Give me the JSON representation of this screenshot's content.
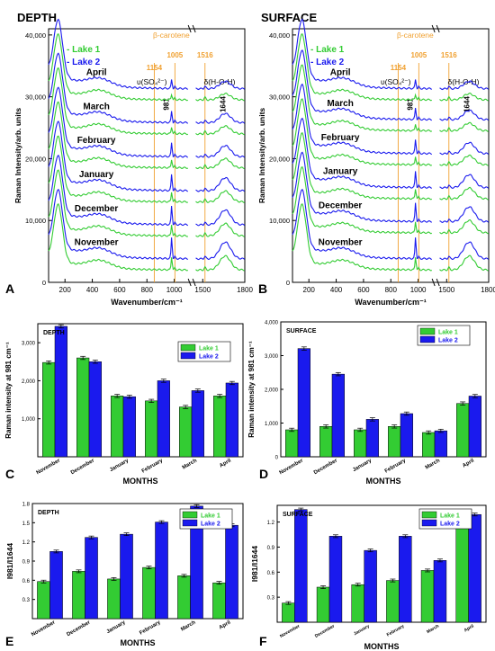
{
  "colors": {
    "lake1": "#33cc33",
    "lake2": "#1a1aee",
    "carotene": "#f0a030",
    "frame": "#000000"
  },
  "chart_data": [
    {
      "type": "line",
      "panel": "A",
      "title": "DEPTH",
      "xlabel": "Wavenumber/cm⁻¹",
      "ylabel": "Raman Intensity/arb. units",
      "xticks_left": [
        "200",
        "400",
        "600",
        "800",
        "1000"
      ],
      "xticks_right": [
        "1500",
        "1800"
      ],
      "yticks": [
        "0",
        "10,000",
        "20,000",
        "30,000",
        "40,000"
      ],
      "ylim": [
        0,
        41000
      ],
      "legend": [
        "- Lake 1",
        "- Lake 2"
      ],
      "months": [
        "April",
        "March",
        "February",
        "January",
        "December",
        "November"
      ],
      "month_offsets": [
        29500,
        24000,
        18500,
        13000,
        7500,
        2000
      ],
      "peak_labels": {
        "sulfate": "υ(SO₄²⁻)",
        "p981": "981",
        "water": "δ(H-O-H)",
        "p1644": "1644"
      },
      "carotene_labels": {
        "name": "β-carotene",
        "p1005": "1005",
        "p1154": "1154",
        "p1516": "1516"
      }
    },
    {
      "type": "line",
      "panel": "B",
      "title": "SURFACE",
      "xlabel": "Wavenumber/cm⁻¹",
      "ylabel": "Raman Intensity/arb. units",
      "xticks_left": [
        "200",
        "400",
        "600",
        "800",
        "1000"
      ],
      "xticks_right": [
        "1500",
        "1800"
      ],
      "yticks": [
        "0",
        "10,000",
        "20,000",
        "30,000",
        "40,000"
      ],
      "ylim": [
        0,
        41000
      ],
      "legend": [
        "- Lake 1",
        "- Lake 2"
      ],
      "months": [
        "April",
        "March",
        "February",
        "January",
        "December",
        "November"
      ],
      "month_offsets": [
        29500,
        24500,
        19000,
        13500,
        8000,
        2000
      ],
      "peak_labels": {
        "sulfate": "υ(SO₄²⁻)",
        "p981": "981",
        "water": "δ(H-O-H)",
        "p1644": "1644"
      },
      "carotene_labels": {
        "name": "β-carotene",
        "p1005": "1005",
        "p1154": "1154",
        "p1516": "1516"
      }
    },
    {
      "type": "bar",
      "panel": "C",
      "title": "DEPTH",
      "xlabel": "MONTHS",
      "ylabel": "Raman intensity at 981 cm⁻¹",
      "categories": [
        "November",
        "December",
        "January",
        "February",
        "March",
        "April"
      ],
      "series": [
        {
          "name": "Lake 1",
          "values": [
            2480,
            2600,
            1600,
            1470,
            1310,
            1600
          ]
        },
        {
          "name": "Lake 2",
          "values": [
            3430,
            2500,
            1580,
            2000,
            1740,
            1940
          ]
        }
      ],
      "ylim": [
        0,
        3500
      ],
      "yticks": [
        "1,000",
        "2,000",
        "3,000"
      ]
    },
    {
      "type": "bar",
      "panel": "D",
      "title": "SURFACE",
      "xlabel": "MONTHS",
      "ylabel": "Raman intensity at 981 cm⁻¹",
      "categories": [
        "November",
        "December",
        "January",
        "February",
        "March",
        "April"
      ],
      "series": [
        {
          "name": "Lake 1",
          "values": [
            800,
            900,
            800,
            900,
            720,
            1580
          ]
        },
        {
          "name": "Lake 2",
          "values": [
            3210,
            2450,
            1110,
            1280,
            770,
            1800
          ]
        }
      ],
      "ylim": [
        0,
        4000
      ],
      "yticks": [
        "0",
        "1,000",
        "2,000",
        "3,000",
        "4,000"
      ]
    },
    {
      "type": "bar",
      "panel": "E",
      "title": "DEPTH",
      "xlabel": "MONTHS",
      "ylabel": "I981/I1644",
      "categories": [
        "November",
        "December",
        "January",
        "February",
        "March",
        "April"
      ],
      "series": [
        {
          "name": "Lake 1",
          "values": [
            0.58,
            0.74,
            0.62,
            0.8,
            0.67,
            0.56
          ]
        },
        {
          "name": "Lake 2",
          "values": [
            1.05,
            1.27,
            1.32,
            1.51,
            1.76,
            1.46
          ]
        }
      ],
      "ylim": [
        0,
        1.8
      ],
      "yticks": [
        "0.3",
        "0.6",
        "0.9",
        "1.2",
        "1.5",
        "1.8"
      ]
    },
    {
      "type": "bar",
      "panel": "F",
      "title": "SURFACE",
      "xlabel": "MONTHS",
      "ylabel": "I981/I1644",
      "categories": [
        "November",
        "December",
        "January",
        "February",
        "March",
        "April"
      ],
      "series": [
        {
          "name": "Lake 1",
          "values": [
            0.23,
            0.42,
            0.45,
            0.5,
            0.62,
            1.33
          ]
        },
        {
          "name": "Lake 2",
          "values": [
            1.35,
            1.03,
            0.86,
            1.03,
            0.74,
            1.29
          ]
        }
      ],
      "ylim": [
        0,
        1.4
      ],
      "yticks": [
        "0.3",
        "0.6",
        "0.9",
        "1.2"
      ]
    }
  ]
}
